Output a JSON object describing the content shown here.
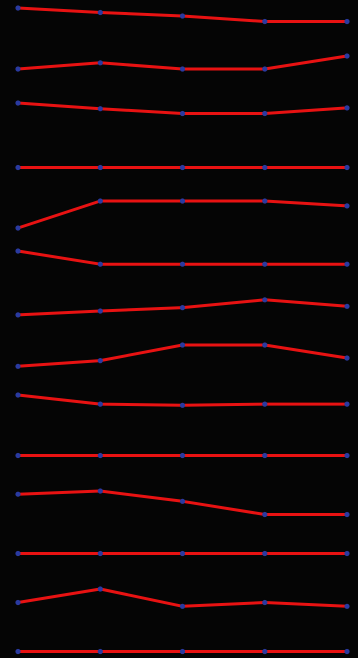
{
  "chart_data": {
    "type": "line",
    "title": "",
    "xlabel": "",
    "ylabel": "",
    "grid": false,
    "legend": "none",
    "x": [
      0,
      1,
      2,
      3,
      4
    ],
    "line_color": "#e81212",
    "marker_color": "#2a3aa0",
    "background": "#050505",
    "series": [
      {
        "values": [
          1.0,
          0.82,
          0.68,
          0.46,
          0.46
        ]
      },
      {
        "values": [
          0.48,
          0.73,
          0.48,
          0.48,
          1.0
        ]
      },
      {
        "values": [
          1.0,
          0.79,
          0.61,
          0.61,
          0.82
        ]
      },
      {
        "values": [
          0.5,
          0.5,
          0.5,
          0.5,
          0.5
        ]
      },
      {
        "values": [
          0.0,
          1.0,
          1.0,
          1.0,
          0.82
        ]
      },
      {
        "values": [
          1.0,
          0.45,
          0.45,
          0.45,
          0.45
        ]
      },
      {
        "values": [
          0.35,
          0.5,
          0.63,
          0.93,
          0.68
        ]
      },
      {
        "values": [
          0.18,
          0.4,
          1.0,
          1.0,
          0.5
        ]
      },
      {
        "values": [
          1.0,
          0.62,
          0.57,
          0.62,
          0.62
        ]
      },
      {
        "values": [
          0.5,
          0.5,
          0.5,
          0.5,
          0.5
        ]
      },
      {
        "values": [
          0.88,
          1.0,
          0.62,
          0.13,
          0.13
        ]
      },
      {
        "values": [
          0.5,
          0.5,
          0.5,
          0.5,
          0.5
        ]
      },
      {
        "values": [
          0.46,
          1.0,
          0.31,
          0.46,
          0.31
        ]
      },
      {
        "values": [
          0.5,
          0.5,
          0.5,
          0.5,
          0.5
        ]
      }
    ]
  }
}
